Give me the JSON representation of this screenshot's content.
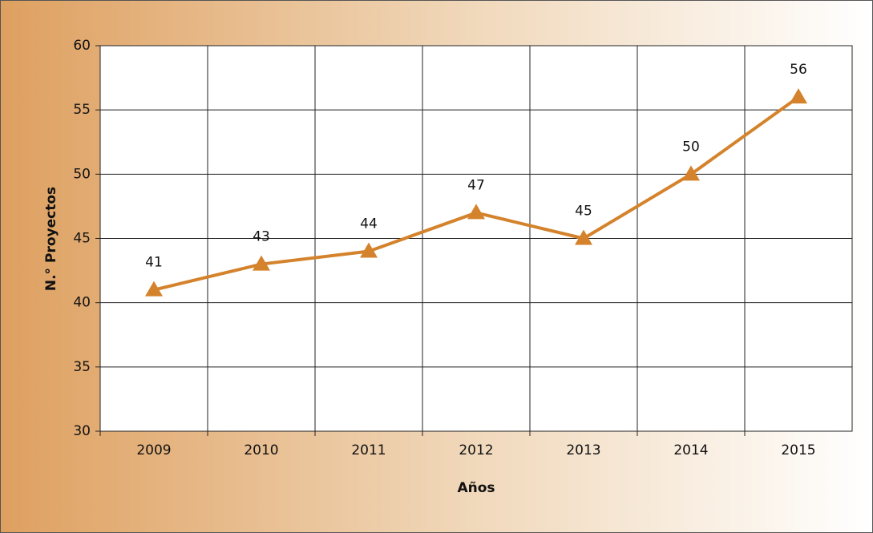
{
  "chart_data": {
    "type": "line",
    "categories": [
      "2009",
      "2010",
      "2011",
      "2012",
      "2013",
      "2014",
      "2015"
    ],
    "values": [
      41,
      43,
      44,
      47,
      45,
      50,
      56
    ],
    "color": "#d4832c",
    "ylim": [
      30,
      60
    ],
    "yticks": [
      30,
      35,
      40,
      45,
      50,
      55,
      60
    ],
    "xlabel": "Años",
    "ylabel": "N.° Proyectos",
    "grid": true
  }
}
